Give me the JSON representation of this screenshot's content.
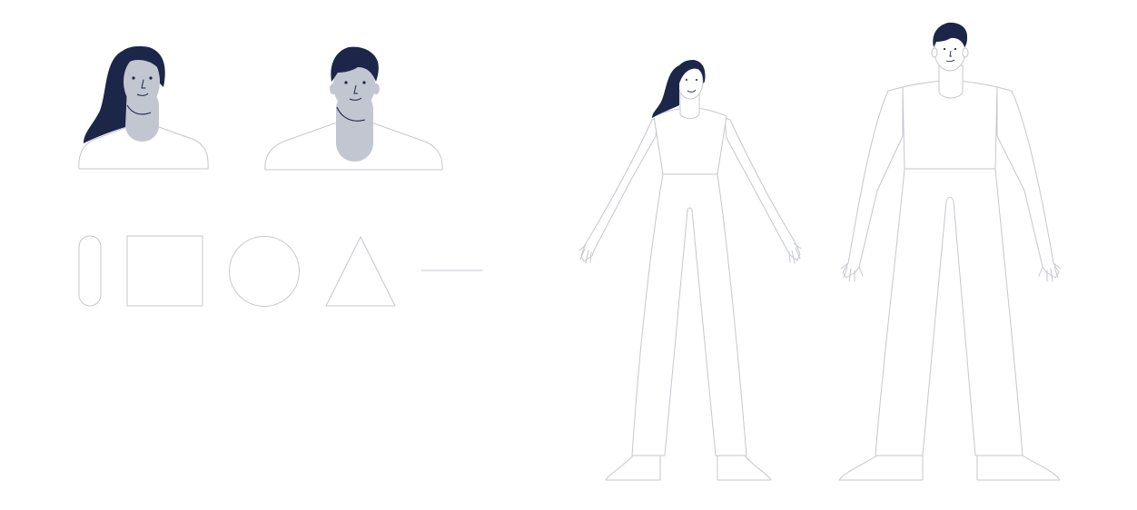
{
  "palette": {
    "hair": "#1b2649",
    "skin": "#c2c6d1",
    "outline": "#c4c7cf",
    "ink": "#1b2649",
    "background": "#ffffff"
  },
  "assets": {
    "busts": [
      "female-bust",
      "male-bust"
    ],
    "shapes": [
      "capsule",
      "square",
      "circle",
      "triangle",
      "line"
    ],
    "figures": [
      "female-full-body",
      "male-full-body"
    ]
  }
}
